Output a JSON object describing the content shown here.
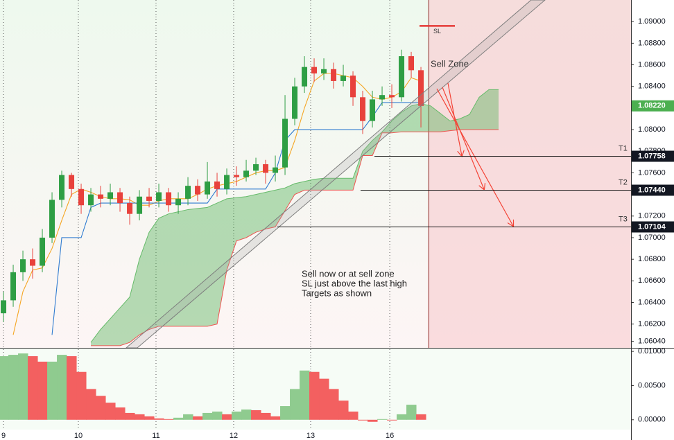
{
  "chart_data": {
    "type": "candlestick",
    "x": [
      0,
      1,
      2,
      3,
      4,
      5,
      6,
      7,
      8,
      9,
      10,
      11,
      12,
      13,
      14,
      15,
      16,
      17,
      18,
      19,
      20,
      21,
      22,
      23,
      24,
      25,
      26,
      27,
      28,
      29,
      30,
      31,
      32,
      33,
      34,
      35,
      36,
      37,
      38,
      39,
      40,
      41,
      42,
      43,
      44,
      45,
      46,
      47,
      48,
      49,
      50,
      51
    ],
    "xlim": [
      -0.36,
      64.64
    ],
    "xticks": [
      {
        "value": 0,
        "label": "9"
      },
      {
        "value": 7.71,
        "label": "10"
      },
      {
        "value": 15.71,
        "label": "11"
      },
      {
        "value": 23.71,
        "label": "12"
      },
      {
        "value": 31.64,
        "label": "13"
      },
      {
        "value": 39.79,
        "label": "16"
      }
    ],
    "ylim": [
      1.0598,
      1.092
    ],
    "yticks": [
      {
        "value": 1.09,
        "label": "1.09000"
      },
      {
        "value": 1.088,
        "label": "1.08800"
      },
      {
        "value": 1.086,
        "label": "1.08600"
      },
      {
        "value": 1.084,
        "label": "1.08400"
      },
      {
        "value": 1.08,
        "label": "1.08000"
      },
      {
        "value": 1.078,
        "label": "1.07800"
      },
      {
        "value": 1.076,
        "label": "1.07600"
      },
      {
        "value": 1.072,
        "label": "1.07200"
      },
      {
        "value": 1.07,
        "label": "1.07000"
      },
      {
        "value": 1.068,
        "label": "1.06800"
      },
      {
        "value": 1.066,
        "label": "1.06600"
      },
      {
        "value": 1.064,
        "label": "1.06400"
      },
      {
        "value": 1.062,
        "label": "1.06200"
      },
      {
        "value": 1.0604,
        "label": "1.06040"
      }
    ],
    "grid": true,
    "candles": {
      "up_color": "#2e9e44",
      "down_color": "#e8413c",
      "open": [
        1.063,
        1.0642,
        1.0668,
        1.068,
        1.0674,
        1.07,
        1.0735,
        1.0758,
        1.0745,
        1.073,
        1.074,
        1.0736,
        1.0742,
        1.0732,
        1.0722,
        1.0738,
        1.0734,
        1.0742,
        1.073,
        1.0736,
        1.0748,
        1.074,
        1.0752,
        1.0745,
        1.0758,
        1.0756,
        1.0762,
        1.0768,
        1.076,
        1.0765,
        1.081,
        1.084,
        1.0858,
        1.0852,
        1.0856,
        1.0845,
        1.085,
        1.083,
        1.0808,
        1.0828,
        1.0832,
        1.083,
        1.0868,
        1.0855,
        null,
        null,
        null,
        null,
        null,
        null,
        null,
        null
      ],
      "high": [
        1.065,
        1.0675,
        1.0688,
        1.069,
        1.0708,
        1.0742,
        1.0762,
        1.076,
        1.075,
        1.0746,
        1.0748,
        1.075,
        1.0746,
        1.0738,
        1.0744,
        1.0746,
        1.075,
        1.0746,
        1.0742,
        1.0756,
        1.0754,
        1.077,
        1.076,
        1.0764,
        1.0766,
        1.0772,
        1.0774,
        1.0772,
        1.0776,
        1.0832,
        1.0848,
        1.0868,
        1.0866,
        1.0866,
        1.0862,
        1.086,
        1.0854,
        1.0836,
        1.0836,
        1.084,
        1.0842,
        1.0874,
        1.0872,
        1.0858,
        null,
        null,
        null,
        null,
        null,
        null,
        null,
        null
      ],
      "low": [
        1.0622,
        1.0636,
        1.066,
        1.0662,
        1.0668,
        1.0695,
        1.0728,
        1.0738,
        1.0722,
        1.0724,
        1.0728,
        1.073,
        1.0724,
        1.0712,
        1.0716,
        1.0728,
        1.0728,
        1.0724,
        1.0722,
        1.073,
        1.0734,
        1.0736,
        1.0738,
        1.074,
        1.0748,
        1.0752,
        1.0758,
        1.075,
        1.0752,
        1.0758,
        1.0804,
        1.0834,
        1.0844,
        1.0846,
        1.0838,
        1.084,
        1.0822,
        1.0796,
        1.0802,
        1.0822,
        1.082,
        1.0826,
        1.0848,
        1.0802,
        null,
        null,
        null,
        null,
        null,
        null,
        null,
        null
      ],
      "close": [
        1.0642,
        1.0668,
        1.068,
        1.0674,
        1.07,
        1.0735,
        1.0758,
        1.0745,
        1.073,
        1.074,
        1.0736,
        1.0742,
        1.0732,
        1.0722,
        1.0738,
        1.0734,
        1.0742,
        1.073,
        1.0736,
        1.0748,
        1.074,
        1.0752,
        1.0745,
        1.0758,
        1.0756,
        1.0762,
        1.0768,
        1.076,
        1.0765,
        1.081,
        1.084,
        1.0858,
        1.0852,
        1.0856,
        1.0845,
        1.085,
        1.083,
        1.0808,
        1.0828,
        1.0832,
        1.083,
        1.0868,
        1.0855,
        1.0822,
        null,
        null,
        null,
        null,
        null,
        null,
        null,
        null
      ]
    },
    "lines": [
      {
        "color": "#f5a623",
        "values": [
          null,
          1.061,
          1.065,
          1.067,
          1.0672,
          1.069,
          1.0716,
          1.074,
          1.0745,
          1.0742,
          1.0738,
          1.0736,
          1.0736,
          1.0735,
          1.073,
          1.073,
          1.0734,
          1.0736,
          1.0736,
          1.0736,
          1.074,
          1.0745,
          1.0748,
          1.075,
          1.0752,
          1.0756,
          1.076,
          1.0762,
          1.0762,
          1.0765,
          1.079,
          1.082,
          1.0845,
          1.0852,
          1.0852,
          1.085,
          1.0848,
          1.084,
          1.083,
          1.0828,
          1.083,
          1.0835,
          1.0848,
          1.0845,
          null,
          null,
          null,
          null,
          null,
          null,
          null,
          null
        ]
      },
      {
        "color": "#2f7bd0",
        "values": [
          null,
          null,
          null,
          null,
          null,
          1.061,
          1.07,
          1.07,
          1.07,
          1.0728,
          1.0732,
          1.0732,
          1.0732,
          1.0732,
          1.0732,
          1.0732,
          1.0732,
          1.0732,
          1.0732,
          1.0732,
          1.0732,
          1.0732,
          1.0745,
          1.0745,
          1.0745,
          1.0745,
          1.0745,
          1.0745,
          1.076,
          1.079,
          1.08,
          1.08,
          1.08,
          1.08,
          1.08,
          1.08,
          1.08,
          1.08,
          1.0812,
          1.0825,
          1.0825,
          1.0825,
          1.0825,
          1.0825,
          null,
          null,
          null,
          null,
          null,
          null,
          null,
          null
        ]
      }
    ],
    "cloud": {
      "fill": "#4caf50",
      "upper_color": "#66bb6a",
      "lower_color": "#ef5350",
      "upper": [
        null,
        null,
        null,
        null,
        null,
        null,
        null,
        null,
        null,
        1.0603,
        1.0615,
        1.0625,
        1.0635,
        1.0645,
        1.068,
        1.0705,
        1.0718,
        1.0722,
        1.0724,
        1.0726,
        1.0727,
        1.0728,
        1.0732,
        1.0736,
        1.0737,
        1.0738,
        1.074,
        1.0742,
        1.0744,
        1.0746,
        1.075,
        1.0752,
        1.0754,
        1.0755,
        1.0755,
        1.0755,
        1.0755,
        1.078,
        1.079,
        1.0798,
        1.0808,
        1.0816,
        1.0822,
        1.0824,
        1.0822,
        1.0815,
        1.0808,
        1.081,
        1.0814,
        1.083,
        1.0837,
        1.0837
      ],
      "lower": [
        null,
        null,
        null,
        null,
        null,
        null,
        null,
        null,
        null,
        1.06,
        1.06,
        1.06,
        1.06,
        1.0603,
        1.061,
        1.0615,
        1.0618,
        1.0618,
        1.0618,
        1.0618,
        1.0618,
        1.0618,
        1.062,
        1.067,
        1.0697,
        1.07,
        1.0705,
        1.0708,
        1.071,
        1.0725,
        1.074,
        1.0744,
        1.0744,
        1.0744,
        1.0744,
        1.0744,
        1.0744,
        1.0776,
        1.0776,
        1.0797,
        1.0797,
        1.0798,
        1.0798,
        1.0798,
        1.0798,
        1.0798,
        1.0799,
        1.08,
        1.08,
        1.08,
        1.08,
        1.08
      ]
    },
    "current_price": {
      "value": 1.0822,
      "label": "1.08220",
      "color": "#4caf50"
    },
    "targets": [
      {
        "label": "T1",
        "price": 1.07758
      },
      {
        "label": "T2",
        "price": {
          "value": 1.0744,
          "label": "1.07440"
        }
      },
      {
        "label": "T3",
        "price": 1.07104
      }
    ],
    "stop_loss": {
      "label": "SL",
      "price": 1.0896,
      "color": "#e53935"
    },
    "sell_zone": {
      "label": "Sell Zone"
    },
    "note": [
      "Sell now or at sell zone",
      "SL just above the last high",
      "Targets as shown"
    ],
    "oscillator": {
      "type": "bar",
      "up_color": "#8fcb8f",
      "down_color": "#f36060",
      "ylim": [
        -0.00144,
        0.01052
      ],
      "yticks": [
        {
          "value": 0.01,
          "label": "0.01000"
        },
        {
          "value": 0.005,
          "label": "0.00500"
        },
        {
          "value": 0,
          "label": "0.00000"
        }
      ],
      "values": [
        0.0093,
        0.0095,
        0.0097,
        0.0093,
        0.0085,
        0.0085,
        0.0095,
        0.0093,
        0.007,
        0.0045,
        0.0035,
        0.0025,
        0.0018,
        0.001,
        0.0008,
        0.0005,
        0.0002,
        0.0001,
        0.0003,
        0.0008,
        0.0005,
        0.001,
        0.0012,
        0.0008,
        0.0012,
        0.0015,
        0.0014,
        0.001,
        0.0005,
        0.002,
        0.0045,
        0.0072,
        0.007,
        0.006,
        0.0045,
        0.0028,
        0.0012,
        -0.0001,
        -0.0003,
        0.0001,
        -0.0001,
        0.0008,
        0.0022,
        0.0008,
        null,
        null,
        null,
        null,
        null,
        null,
        null,
        null
      ]
    }
  }
}
